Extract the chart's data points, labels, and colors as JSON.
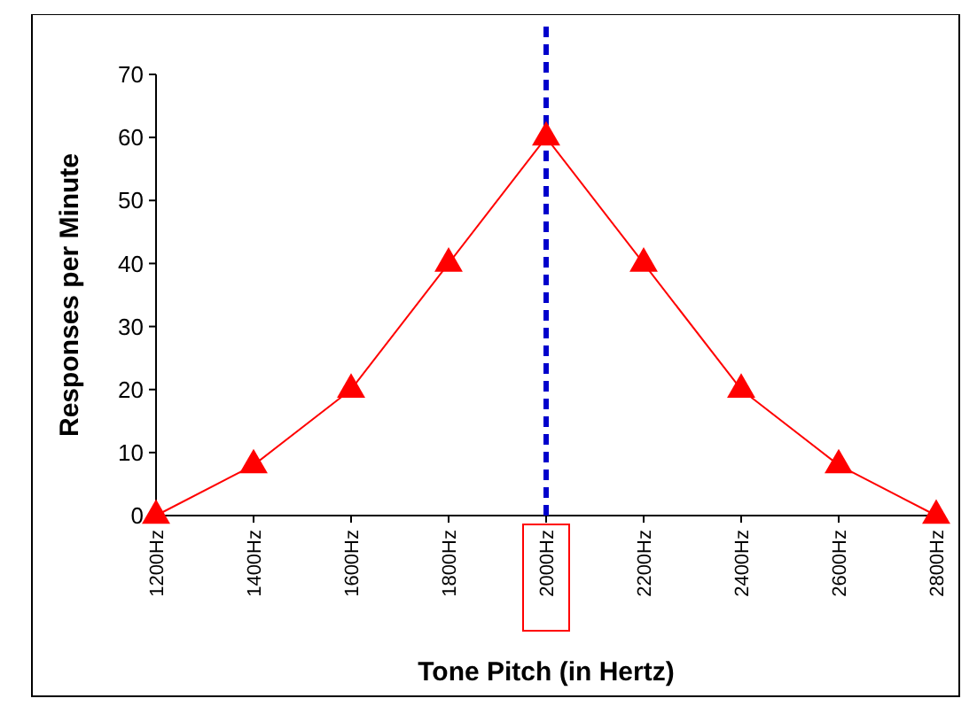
{
  "chart_data": {
    "type": "line",
    "xlabel": "Tone Pitch (in Hertz)",
    "ylabel": "Responses per Minute",
    "categories": [
      "1200Hz",
      "1400Hz",
      "1600Hz",
      "1800Hz",
      "2000Hz",
      "2200Hz",
      "2400Hz",
      "2600Hz",
      "2800Hz"
    ],
    "series": [
      {
        "color": "#ff0000",
        "values": [
          0,
          8,
          20,
          40,
          60,
          40,
          20,
          8,
          0
        ]
      }
    ],
    "ylim": [
      0,
      70
    ],
    "yticks": [
      0,
      10,
      20,
      30,
      40,
      50,
      60,
      70
    ],
    "marker": "triangle",
    "line_style": "solid",
    "grid": false,
    "ref_lines": [
      {
        "axis": "x",
        "value": "2000Hz",
        "color": "#0000cc",
        "line_style": "dashed"
      }
    ]
  }
}
